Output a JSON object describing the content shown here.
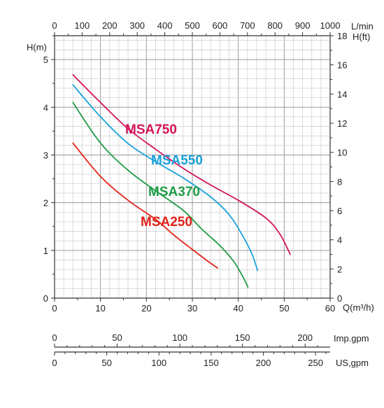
{
  "chart_data": {
    "type": "line",
    "title": "",
    "q_axis": {
      "label": "Q(m³/h)",
      "min": 0,
      "max": 60,
      "ticks": [
        0,
        10,
        20,
        30,
        40,
        50,
        60
      ]
    },
    "h_axis_m": {
      "label": "H(m)",
      "min": 0,
      "max": 5.5,
      "ticks": [
        0,
        1,
        2,
        3,
        4,
        5
      ]
    },
    "h_axis_ft": {
      "label": "H(ft)",
      "min": 0,
      "max": 18,
      "ticks": [
        0,
        2,
        4,
        6,
        8,
        10,
        12,
        14,
        16,
        18
      ]
    },
    "lmin_axis": {
      "label": "L/min",
      "min": 0,
      "max": 1000,
      "ticks": [
        0,
        100,
        200,
        300,
        400,
        500,
        600,
        700,
        800,
        900,
        1000
      ]
    },
    "imp_gpm_axis": {
      "label": "Imp.gpm",
      "min": 0,
      "max": 220,
      "ticks": [
        0,
        50,
        100,
        150,
        200
      ]
    },
    "us_gpm_axis": {
      "label": "US,gpm",
      "min": 0,
      "max": 264,
      "ticks": [
        0,
        50,
        100,
        150,
        200,
        250
      ]
    },
    "grid": true,
    "series": [
      {
        "name": "MSA750",
        "color": "#d4145a",
        "points": [
          [
            4,
            4.68
          ],
          [
            10,
            4.1
          ],
          [
            16,
            3.55
          ],
          [
            22,
            3.12
          ],
          [
            28,
            2.72
          ],
          [
            34,
            2.37
          ],
          [
            40,
            2.05
          ],
          [
            46,
            1.68
          ],
          [
            49,
            1.35
          ],
          [
            51.3,
            0.92
          ]
        ]
      },
      {
        "name": "MSA550",
        "color": "#1ba1dc",
        "points": [
          [
            4,
            4.47
          ],
          [
            10,
            3.8
          ],
          [
            16,
            3.24
          ],
          [
            22,
            2.86
          ],
          [
            28,
            2.52
          ],
          [
            34,
            2.12
          ],
          [
            38,
            1.75
          ],
          [
            41,
            1.3
          ],
          [
            43,
            0.92
          ],
          [
            44.2,
            0.58
          ]
        ]
      },
      {
        "name": "MSA370",
        "color": "#1f9c45",
        "points": [
          [
            4,
            4.1
          ],
          [
            10,
            3.25
          ],
          [
            16,
            2.68
          ],
          [
            22,
            2.25
          ],
          [
            28,
            1.84
          ],
          [
            32,
            1.45
          ],
          [
            36,
            1.1
          ],
          [
            39,
            0.77
          ],
          [
            41,
            0.45
          ],
          [
            42.1,
            0.23
          ]
        ]
      },
      {
        "name": "MSA250",
        "color": "#e2231a",
        "points": [
          [
            4,
            3.25
          ],
          [
            10,
            2.55
          ],
          [
            16,
            2.05
          ],
          [
            22,
            1.65
          ],
          [
            26,
            1.32
          ],
          [
            30,
            1.02
          ],
          [
            33,
            0.8
          ],
          [
            35.5,
            0.63
          ]
        ]
      }
    ]
  }
}
